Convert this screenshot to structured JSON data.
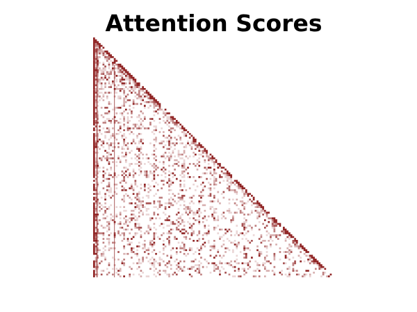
{
  "chart_data": {
    "type": "heatmap",
    "title": "Attention Scores",
    "xlabel": "",
    "ylabel": "",
    "mask": "lower-triangular (causal)",
    "colormap": "white-to-dark-red",
    "axes_visible": false,
    "grid": false,
    "colors": {
      "low": "#ffffff",
      "high": "#8b1a1a",
      "background": "#ffffff"
    }
  }
}
